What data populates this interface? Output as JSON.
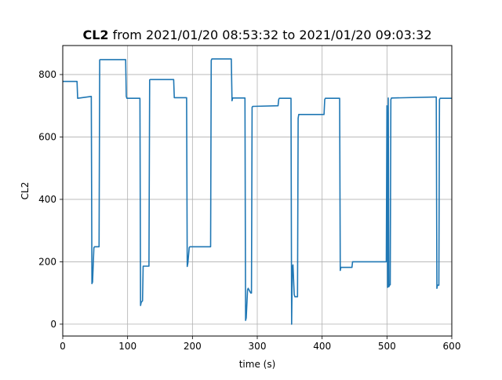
{
  "chart_data": {
    "type": "line",
    "title_bold": "CL2",
    "title_rest": " from 2021/01/20 08:53:32 to 2021/01/20 09:03:32",
    "xlabel": "time (s)",
    "ylabel": "CL2",
    "xlim": [
      0,
      600
    ],
    "ylim": [
      -38,
      893
    ],
    "xticks": [
      0,
      100,
      200,
      300,
      400,
      500,
      600
    ],
    "yticks": [
      0,
      200,
      400,
      600,
      800
    ],
    "grid": true,
    "line_color": "#1f77b4",
    "series": [
      {
        "x": [
          0,
          22,
          23,
          44,
          45,
          46,
          48,
          49,
          50,
          56,
          57,
          58,
          97,
          98,
          99,
          119,
          120,
          121,
          123,
          124,
          125,
          133,
          134,
          135,
          171,
          172,
          173,
          191,
          192,
          193,
          195,
          196,
          228,
          229,
          230,
          260,
          261,
          262,
          281,
          282,
          283,
          285,
          286,
          290,
          291,
          292,
          293,
          332,
          333,
          334,
          352,
          353,
          354,
          355,
          357,
          358,
          362,
          363,
          364,
          403,
          404,
          405,
          427,
          428,
          429,
          446,
          447,
          448,
          499,
          500,
          501,
          502,
          503,
          504,
          505,
          506,
          507,
          508,
          575,
          576,
          577,
          578,
          580,
          581,
          582,
          600
        ],
        "y": [
          778,
          778,
          724,
          730,
          130,
          135,
          245,
          248,
          248,
          248,
          847,
          848,
          848,
          730,
          724,
          724,
          60,
          70,
          75,
          186,
          186,
          186,
          783,
          784,
          784,
          726,
          726,
          726,
          185,
          195,
          245,
          248,
          248,
          845,
          850,
          850,
          716,
          725,
          725,
          12,
          20,
          110,
          115,
          100,
          100,
          695,
          698,
          700,
          720,
          724,
          724,
          0,
          180,
          190,
          95,
          88,
          88,
          660,
          672,
          672,
          720,
          724,
          724,
          172,
          182,
          182,
          200,
          200,
          200,
          700,
          118,
          725,
          120,
          126,
          126,
          720,
          725,
          725,
          728,
          728,
          115,
          125,
          125,
          720,
          724,
          724
        ]
      }
    ]
  }
}
